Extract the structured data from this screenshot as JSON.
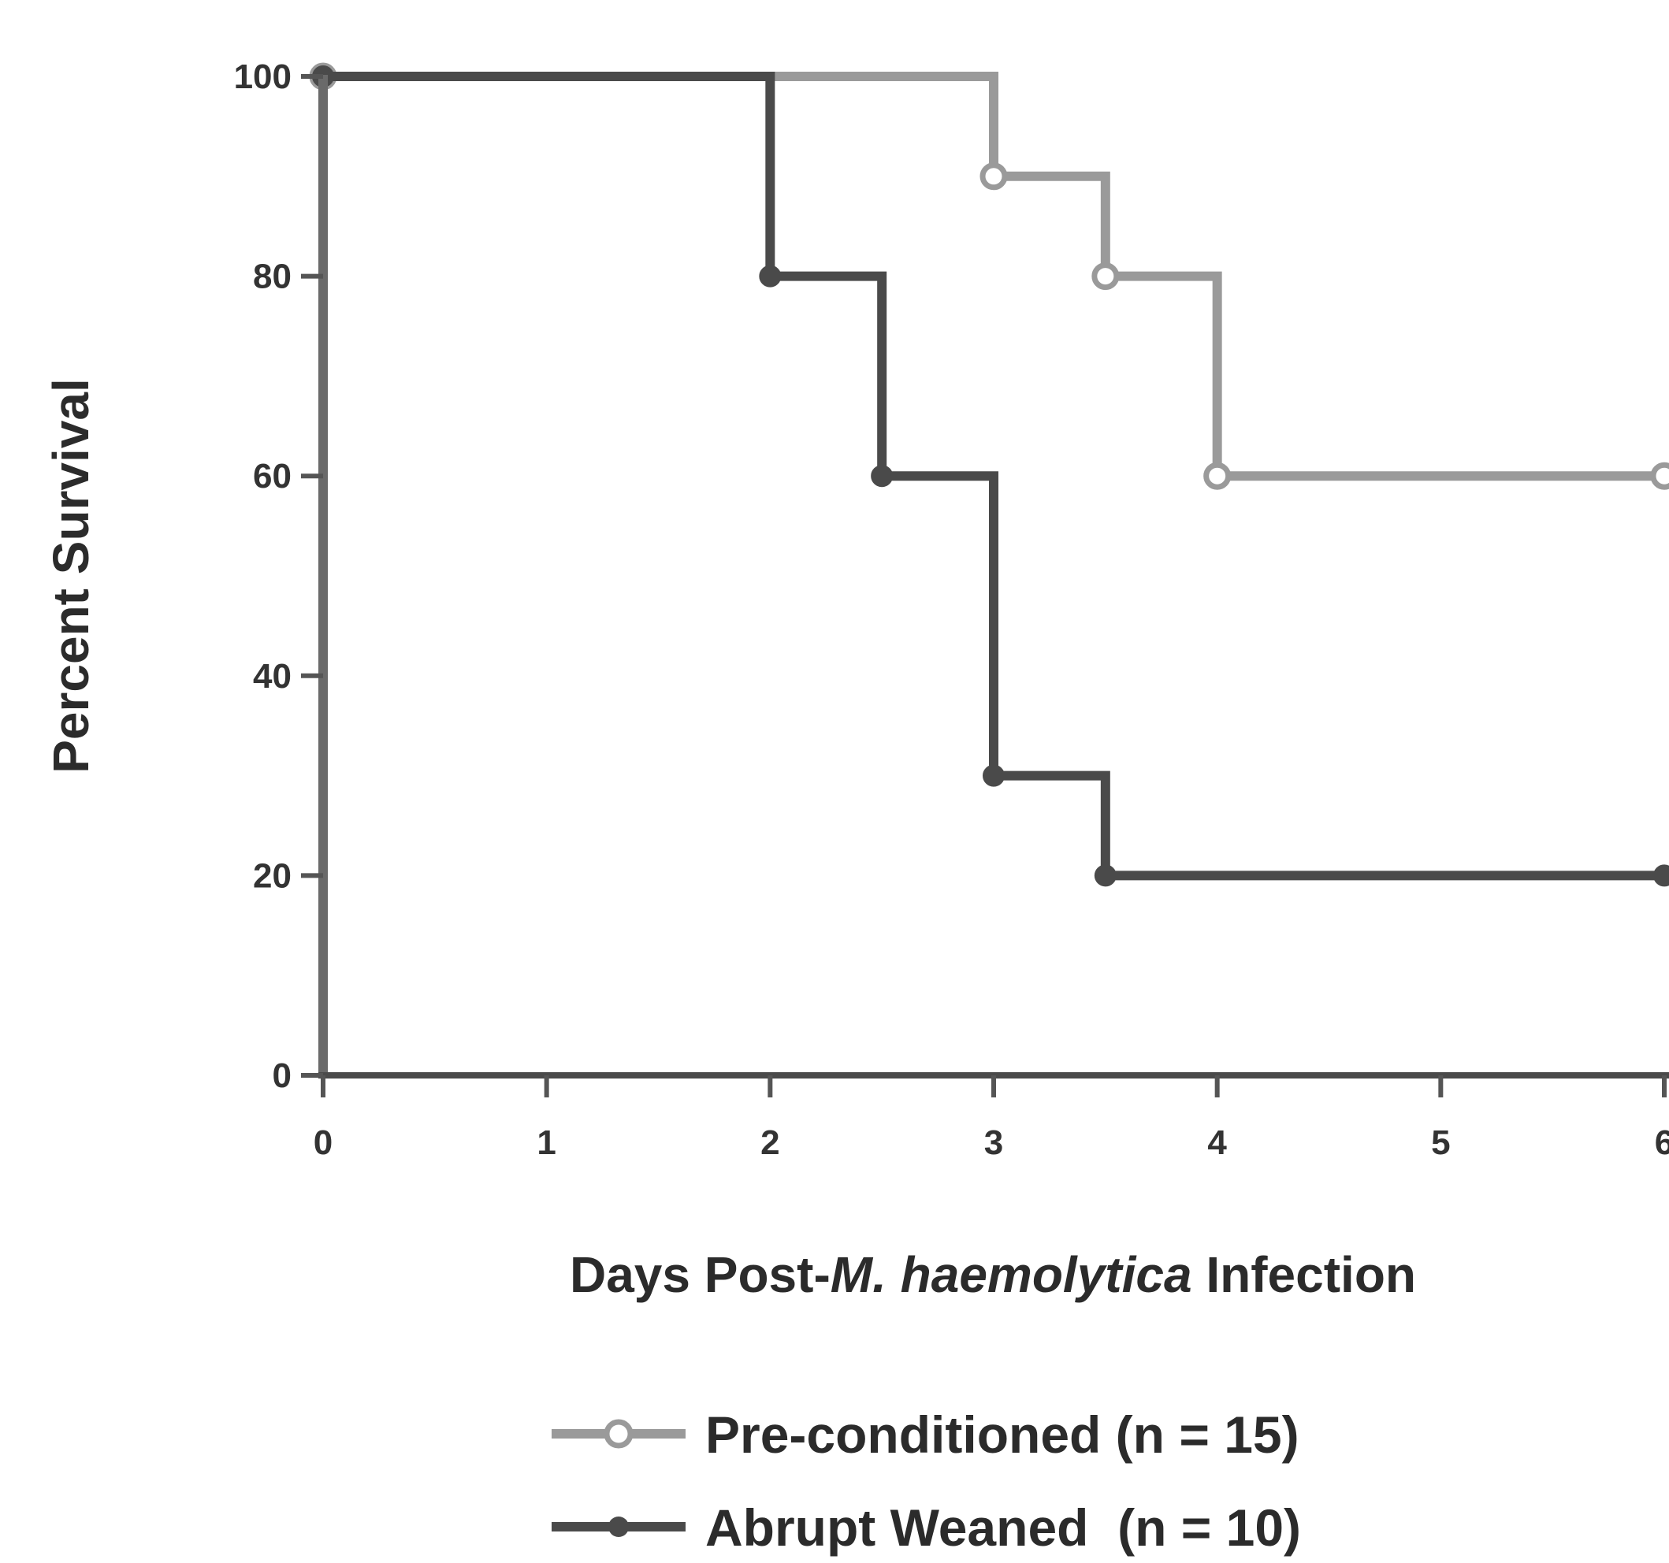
{
  "chart_data": {
    "type": "line",
    "subtype": "step",
    "title": "",
    "ylabel": "Percent Survival",
    "xlabel": {
      "prefix": "Days Post-",
      "italic": "M. haemolytica",
      "suffix": " Infection"
    },
    "xlim": [
      0,
      6
    ],
    "ylim": [
      0,
      100
    ],
    "x_ticks": [
      "0",
      "1",
      "2",
      "3",
      "4",
      "5",
      "6"
    ],
    "y_ticks": [
      "0",
      "20",
      "40",
      "60",
      "80",
      "100"
    ],
    "grid": false,
    "legend_position": "bottom",
    "series": [
      {
        "name": "Pre-conditioned (n = 15)",
        "color": "#9a9a9a",
        "marker": "open-circle",
        "x": [
          0,
          3,
          3.5,
          4,
          6
        ],
        "y": [
          100,
          90,
          80,
          60,
          60
        ]
      },
      {
        "name": "Abrupt Weaned  (n = 10)",
        "color": "#4a4a4a",
        "marker": "filled-circle",
        "x": [
          0,
          2,
          2.5,
          3,
          3.5,
          6
        ],
        "y": [
          100,
          80,
          60,
          30,
          20,
          20
        ]
      }
    ]
  }
}
